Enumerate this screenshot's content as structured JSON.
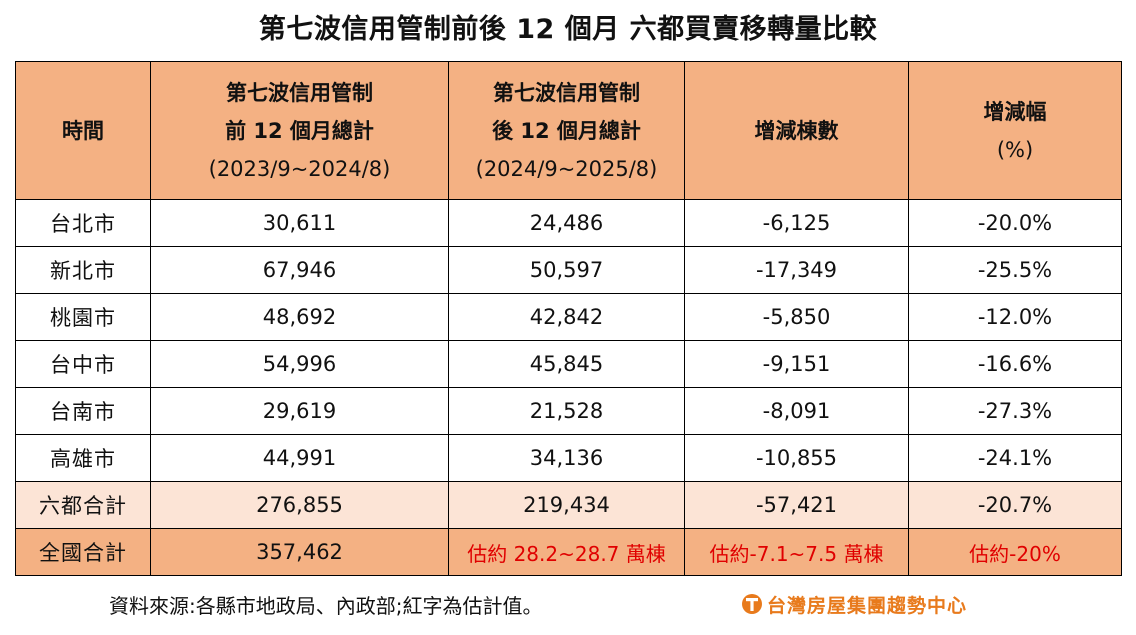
{
  "title": "第七波信用管制前後 12 個月  六都買賣移轉量比較",
  "header": {
    "col1": "時間",
    "col2": {
      "line1": "第七波信用管制",
      "line2": "前 12 個月總計",
      "line3": "(2023/9~2024/8)"
    },
    "col3": {
      "line1": "第七波信用管制",
      "line2": "後 12 個月總計",
      "line3": "(2024/9~2025/8)"
    },
    "col4": "增減棟數",
    "col5": {
      "line1": "增減幅",
      "line2": "(%)"
    }
  },
  "rows": [
    {
      "city": "台北市",
      "before": "30,611",
      "after": "24,486",
      "diff": "-6,125",
      "pct": "-20.0%"
    },
    {
      "city": "新北市",
      "before": "67,946",
      "after": "50,597",
      "diff": "-17,349",
      "pct": "-25.5%"
    },
    {
      "city": "桃園市",
      "before": "48,692",
      "after": "42,842",
      "diff": "-5,850",
      "pct": "-12.0%"
    },
    {
      "city": "台中市",
      "before": "54,996",
      "after": "45,845",
      "diff": "-9,151",
      "pct": "-16.6%"
    },
    {
      "city": "台南市",
      "before": "29,619",
      "after": "21,528",
      "diff": "-8,091",
      "pct": "-27.3%"
    },
    {
      "city": "高雄市",
      "before": "44,991",
      "after": "34,136",
      "diff": "-10,855",
      "pct": "-24.1%"
    }
  ],
  "six_total": {
    "label": "六都合計",
    "before": "276,855",
    "after": "219,434",
    "diff": "-57,421",
    "pct": "-20.7%"
  },
  "national_total": {
    "label": "全國合計",
    "before": "357,462",
    "after": "估約 28.2~28.7 萬棟",
    "diff": "估約-7.1~7.5 萬棟",
    "pct": "估約-20%"
  },
  "footer": {
    "source": "資料來源:各縣市地政局、內政部;紅字為估計值。",
    "brand": "台灣房屋集團趨勢中心",
    "brand_icon": "taiwan-realty-logo-icon"
  },
  "colors": {
    "header_bg": "#F4B183",
    "six_total_bg": "#FCE4D6",
    "national_total_bg": "#F4B183",
    "estimate_text": "#E00000",
    "brand": "#E87A1C"
  }
}
